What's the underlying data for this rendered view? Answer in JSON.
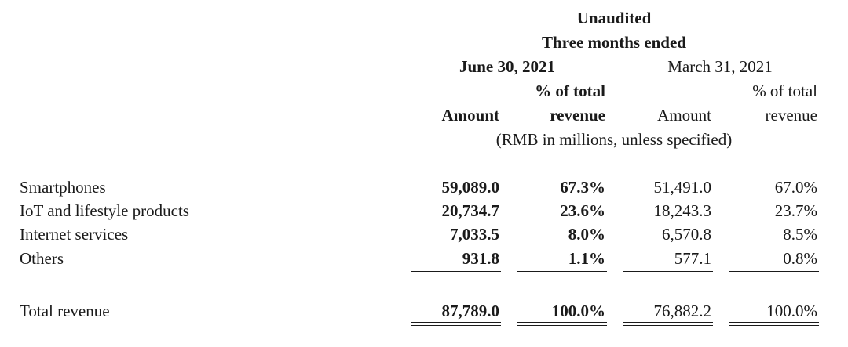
{
  "header": {
    "unaudited": "Unaudited",
    "period": "Three months ended",
    "col_group_current": "June 30, 2021",
    "col_group_prior": "March 31, 2021",
    "pct_line1_current": "% of total",
    "pct_line2_current": "revenue",
    "amount_current": "Amount",
    "pct_line1_prior": "% of total",
    "pct_line2_prior": "revenue",
    "amount_prior": "Amount",
    "units": "(RMB in millions, unless specified)"
  },
  "rows": [
    {
      "label": "Smartphones",
      "amount_current": "59,089.0",
      "pct_current": "67.3%",
      "amount_prior": "51,491.0",
      "pct_prior": "67.0%"
    },
    {
      "label": "IoT and lifestyle products",
      "amount_current": "20,734.7",
      "pct_current": "23.6%",
      "amount_prior": "18,243.3",
      "pct_prior": "23.7%"
    },
    {
      "label": "Internet services",
      "amount_current": "7,033.5",
      "pct_current": "8.0%",
      "amount_prior": "6,570.8",
      "pct_prior": "8.5%"
    },
    {
      "label": "Others",
      "amount_current": "931.8",
      "pct_current": "1.1%",
      "amount_prior": "577.1",
      "pct_prior": "0.8%"
    }
  ],
  "total": {
    "label": "Total revenue",
    "amount_current": "87,789.0",
    "pct_current": "100.0%",
    "amount_prior": "76,882.2",
    "pct_prior": "100.0%"
  }
}
